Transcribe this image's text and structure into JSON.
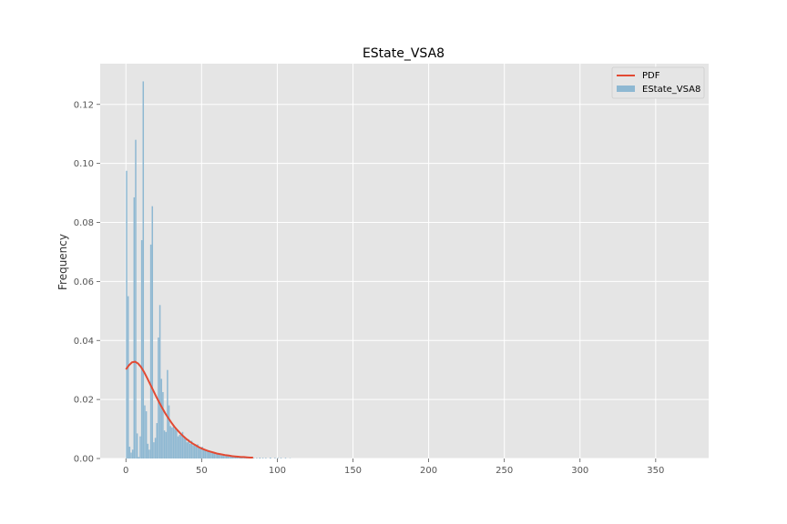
{
  "chart_data": {
    "type": "bar",
    "title": "EState_VSA8",
    "xlabel": "",
    "ylabel": "Frequency",
    "xlim": [
      -17,
      385
    ],
    "ylim": [
      0,
      0.1338
    ],
    "xticks": [
      0,
      50,
      100,
      150,
      200,
      250,
      300,
      350
    ],
    "yticks": [
      0.0,
      0.02,
      0.04,
      0.06,
      0.08,
      0.1,
      0.12
    ],
    "ytick_labels": [
      "0.00",
      "0.02",
      "0.04",
      "0.06",
      "0.08",
      "0.10",
      "0.12"
    ],
    "grid": true,
    "legend_position": "top-right",
    "bar_width": 1,
    "colors": {
      "histogram": "#8EB8D2",
      "pdf": "#E24A33",
      "plot_background": "#E5E5E5",
      "grid": "#FFFFFF"
    },
    "series": [
      {
        "name": "EState_VSA8",
        "type": "histogram",
        "bins": [
          [
            0,
            0.0975
          ],
          [
            1,
            0.055
          ],
          [
            2,
            0.004
          ],
          [
            3,
            0.002
          ],
          [
            4,
            0.003
          ],
          [
            5,
            0.0885
          ],
          [
            6,
            0.108
          ],
          [
            7,
            0.0085
          ],
          [
            8,
            0.0005
          ],
          [
            9,
            0.0075
          ],
          [
            10,
            0.074
          ],
          [
            11,
            0.1278
          ],
          [
            12,
            0.018
          ],
          [
            13,
            0.016
          ],
          [
            14,
            0.005
          ],
          [
            15,
            0.003
          ],
          [
            16,
            0.0725
          ],
          [
            17,
            0.0855
          ],
          [
            18,
            0.0055
          ],
          [
            19,
            0.007
          ],
          [
            20,
            0.012
          ],
          [
            21,
            0.041
          ],
          [
            22,
            0.052
          ],
          [
            23,
            0.027
          ],
          [
            24,
            0.0225
          ],
          [
            25,
            0.0095
          ],
          [
            26,
            0.009
          ],
          [
            27,
            0.03
          ],
          [
            28,
            0.018
          ],
          [
            29,
            0.011
          ],
          [
            30,
            0.0105
          ],
          [
            31,
            0.011
          ],
          [
            32,
            0.01
          ],
          [
            33,
            0.0095
          ],
          [
            34,
            0.0075
          ],
          [
            35,
            0.008
          ],
          [
            36,
            0.0085
          ],
          [
            37,
            0.009
          ],
          [
            38,
            0.007
          ],
          [
            39,
            0.0065
          ],
          [
            40,
            0.0055
          ],
          [
            41,
            0.0065
          ],
          [
            42,
            0.005
          ],
          [
            43,
            0.006
          ],
          [
            44,
            0.0045
          ],
          [
            45,
            0.0045
          ],
          [
            46,
            0.004
          ],
          [
            47,
            0.0048
          ],
          [
            48,
            0.0035
          ],
          [
            49,
            0.0032
          ],
          [
            50,
            0.004
          ],
          [
            51,
            0.003
          ],
          [
            52,
            0.003
          ],
          [
            53,
            0.0025
          ],
          [
            54,
            0.0028
          ],
          [
            55,
            0.0022
          ],
          [
            56,
            0.002
          ],
          [
            57,
            0.0022
          ],
          [
            58,
            0.0017
          ],
          [
            59,
            0.0015
          ],
          [
            60,
            0.0014
          ],
          [
            61,
            0.0015
          ],
          [
            62,
            0.0012
          ],
          [
            63,
            0.001
          ],
          [
            64,
            0.0011
          ],
          [
            65,
            0.0009
          ],
          [
            66,
            0.0008
          ],
          [
            67,
            0.0009
          ],
          [
            68,
            0.0007
          ],
          [
            69,
            0.0006
          ],
          [
            70,
            0.0006
          ],
          [
            71,
            0.0005
          ],
          [
            72,
            0.0005
          ],
          [
            73,
            0.0004
          ],
          [
            74,
            0.0004
          ],
          [
            75,
            0.0003
          ],
          [
            76,
            0.0004
          ],
          [
            77,
            0.0003
          ],
          [
            78,
            0.0003
          ],
          [
            79,
            0.0002
          ],
          [
            80,
            0.0003
          ],
          [
            81,
            0.0002
          ],
          [
            82,
            0.0002
          ],
          [
            84,
            0.0002
          ],
          [
            86,
            0.0002
          ],
          [
            88,
            0.0003
          ],
          [
            90,
            0.0002
          ],
          [
            92,
            0.0002
          ],
          [
            95,
            0.0003
          ],
          [
            98,
            0.0002
          ],
          [
            100,
            0.0002
          ],
          [
            102,
            0.0002
          ],
          [
            105,
            0.0002
          ],
          [
            108,
            0.0001
          ]
        ]
      },
      {
        "name": "PDF",
        "type": "line",
        "x": [
          0,
          2,
          4,
          6,
          8,
          10,
          12,
          14,
          16,
          18,
          20,
          22,
          24,
          26,
          28,
          30,
          32,
          34,
          36,
          38,
          40,
          42,
          44,
          46,
          48,
          50,
          52,
          54,
          56,
          58,
          60,
          62,
          64,
          66,
          68,
          70,
          72,
          74,
          76,
          78,
          80,
          82,
          84
        ],
        "y": [
          0.0302,
          0.0316,
          0.0326,
          0.0328,
          0.0322,
          0.031,
          0.0293,
          0.0273,
          0.0252,
          0.0231,
          0.021,
          0.019,
          0.0171,
          0.0153,
          0.0137,
          0.0122,
          0.0108,
          0.0096,
          0.0085,
          0.0075,
          0.0066,
          0.0058,
          0.0051,
          0.0045,
          0.0039,
          0.0034,
          0.003,
          0.0026,
          0.0023,
          0.002,
          0.0017,
          0.0015,
          0.0013,
          0.0011,
          0.001,
          0.0008,
          0.0007,
          0.0006,
          0.0005,
          0.0005,
          0.0004,
          0.0003,
          0.0003
        ]
      }
    ],
    "legend": [
      "PDF",
      "EState_VSA8"
    ]
  }
}
